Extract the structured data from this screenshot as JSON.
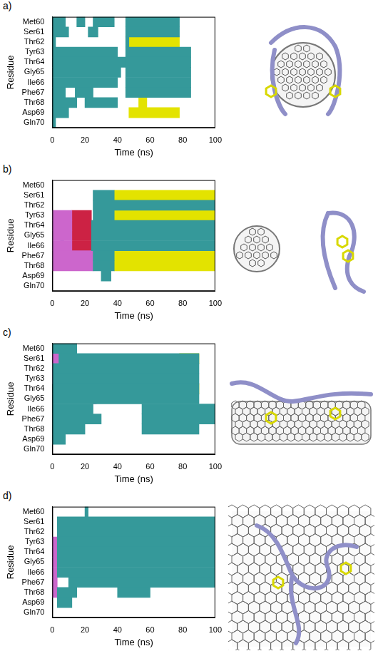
{
  "chart_data": [
    {
      "type": "timeline",
      "title": "a)",
      "x_label": "Time (ns)",
      "y_label": "Residue",
      "categories": [
        "Met60",
        "Ser61",
        "Thr62",
        "Tyr63",
        "Thr64",
        "Gly65",
        "Ile66",
        "Phe67",
        "Thr68",
        "Asp69",
        "Gln70"
      ],
      "xlim": [
        0,
        100
      ],
      "xticks": [
        0,
        20,
        40,
        60,
        80,
        100
      ],
      "grid": false,
      "series": [
        {
          "color": "#35999a",
          "intervals": [
            [
              "Met60",
              0,
              8
            ],
            [
              "Met60",
              15,
              20
            ],
            [
              "Met60",
              25,
              38
            ],
            [
              "Met60",
              45,
              78
            ],
            [
              "Ser61",
              0,
              10
            ],
            [
              "Ser61",
              22,
              28
            ],
            [
              "Ser61",
              45,
              78
            ],
            [
              "Thr62",
              0,
              2
            ],
            [
              "Thr62",
              45,
              47
            ],
            [
              "Tyr63",
              0,
              40
            ],
            [
              "Tyr63",
              45,
              85
            ],
            [
              "Thr64",
              0,
              45
            ],
            [
              "Thr64",
              45,
              85
            ],
            [
              "Gly65",
              0,
              42
            ],
            [
              "Gly65",
              45,
              85
            ],
            [
              "Ile66",
              0,
              40
            ],
            [
              "Ile66",
              45,
              85
            ],
            [
              "Phe67",
              0,
              8
            ],
            [
              "Phe67",
              14,
              25
            ],
            [
              "Phe67",
              45,
              85
            ],
            [
              "Thr68",
              0,
              15
            ],
            [
              "Thr68",
              20,
              40
            ],
            [
              "Asp69",
              0,
              10
            ],
            [
              "Gln70",
              0,
              2
            ]
          ]
        },
        {
          "color": "#e3e300",
          "intervals": [
            [
              "Thr62",
              47,
              78
            ],
            [
              "Thr68",
              53,
              58
            ],
            [
              "Asp69",
              47,
              78
            ]
          ]
        }
      ]
    },
    {
      "type": "timeline",
      "title": "b)",
      "x_label": "Time (ns)",
      "y_label": "Residue",
      "categories": [
        "Met60",
        "Ser61",
        "Thr62",
        "Tyr63",
        "Thr64",
        "Gly65",
        "Ile66",
        "Phe67",
        "Thr68",
        "Asp69",
        "Gln70"
      ],
      "xlim": [
        0,
        100
      ],
      "xticks": [
        0,
        20,
        40,
        60,
        80,
        100
      ],
      "grid": false,
      "series": [
        {
          "color": "#35999a",
          "intervals": [
            [
              "Ser61",
              25,
              38
            ],
            [
              "Thr62",
              25,
              100
            ],
            [
              "Tyr63",
              25,
              38
            ],
            [
              "Thr64",
              24,
              100
            ],
            [
              "Gly65",
              24,
              100
            ],
            [
              "Ile66",
              24,
              100
            ],
            [
              "Phe67",
              25,
              38
            ],
            [
              "Thr68",
              25,
              38
            ],
            [
              "Asp69",
              30,
              36
            ]
          ]
        },
        {
          "color": "#e3e300",
          "intervals": [
            [
              "Ser61",
              38,
              100
            ],
            [
              "Tyr63",
              38,
              100
            ],
            [
              "Phe67",
              38,
              100
            ],
            [
              "Thr68",
              38,
              100
            ]
          ]
        },
        {
          "color": "#cc66cc",
          "intervals": [
            [
              "Tyr63",
              0,
              12
            ],
            [
              "Thr64",
              0,
              12
            ],
            [
              "Gly65",
              0,
              12
            ],
            [
              "Ile66",
              0,
              12
            ],
            [
              "Phe67",
              0,
              25
            ],
            [
              "Thr68",
              0,
              25
            ]
          ]
        },
        {
          "color": "#cc2244",
          "intervals": [
            [
              "Tyr63",
              12,
              24
            ],
            [
              "Thr64",
              12,
              24
            ],
            [
              "Gly65",
              12,
              24
            ],
            [
              "Ile66",
              12,
              24
            ]
          ]
        },
        {
          "color": "#2244cc",
          "intervals": [
            [
              "Thr64",
              3,
              5
            ],
            [
              "Ile66",
              5,
              7
            ]
          ]
        }
      ]
    },
    {
      "type": "timeline",
      "title": "c)",
      "x_label": "Time (ns)",
      "y_label": "Residue",
      "categories": [
        "Met60",
        "Ser61",
        "Thr62",
        "Tyr63",
        "Thr64",
        "Gly65",
        "Ile66",
        "Phe67",
        "Thr68",
        "Asp69",
        "Gln70"
      ],
      "xlim": [
        0,
        100
      ],
      "xticks": [
        0,
        20,
        40,
        60,
        80,
        100
      ],
      "grid": false,
      "series": [
        {
          "color": "#35999a",
          "intervals": [
            [
              "Met60",
              0,
              15
            ],
            [
              "Ser61",
              4,
              90
            ],
            [
              "Thr62",
              0,
              90
            ],
            [
              "Tyr63",
              0,
              90
            ],
            [
              "Thr64",
              0,
              90
            ],
            [
              "Gly65",
              0,
              90
            ],
            [
              "Ile66",
              0,
              25
            ],
            [
              "Ile66",
              55,
              100
            ],
            [
              "Phe67",
              0,
              30
            ],
            [
              "Phe67",
              55,
              100
            ],
            [
              "Thr68",
              0,
              20
            ],
            [
              "Thr68",
              55,
              90
            ],
            [
              "Asp69",
              0,
              8
            ]
          ]
        },
        {
          "color": "#e3e300",
          "intervals": [
            [
              "Ser61",
              78,
              90
            ],
            [
              "Thr64",
              55,
              62
            ],
            [
              "Thr64",
              78,
              90
            ]
          ]
        },
        {
          "color": "#cc66cc",
          "intervals": [
            [
              "Ser61",
              0,
              4
            ],
            [
              "Thr62",
              0,
              4
            ],
            [
              "Tyr63",
              0,
              4
            ],
            [
              "Gly65",
              25,
              27
            ]
          ]
        },
        {
          "color": "#2244cc",
          "intervals": [
            [
              "Thr64",
              3,
              5
            ],
            [
              "Thr64",
              25,
              26
            ]
          ]
        }
      ]
    },
    {
      "type": "timeline",
      "title": "d)",
      "x_label": "Time (ns)",
      "y_label": "Residue",
      "categories": [
        "Met60",
        "Ser61",
        "Thr62",
        "Tyr63",
        "Thr64",
        "Gly65",
        "Ile66",
        "Phe67",
        "Thr68",
        "Asp69",
        "Gln70"
      ],
      "xlim": [
        0,
        100
      ],
      "xticks": [
        0,
        20,
        40,
        60,
        80,
        100
      ],
      "grid": false,
      "series": [
        {
          "color": "#35999a",
          "intervals": [
            [
              "Met60",
              20,
              22
            ],
            [
              "Ser61",
              3,
              100
            ],
            [
              "Thr62",
              3,
              100
            ],
            [
              "Tyr63",
              3,
              100
            ],
            [
              "Thr64",
              3,
              100
            ],
            [
              "Gly65",
              3,
              100
            ],
            [
              "Ile66",
              3,
              100
            ],
            [
              "Phe67",
              10,
              100
            ],
            [
              "Thr68",
              3,
              15
            ],
            [
              "Thr68",
              40,
              60
            ],
            [
              "Asp69",
              3,
              12
            ]
          ]
        },
        {
          "color": "#cc66cc",
          "intervals": [
            [
              "Tyr63",
              0,
              3
            ],
            [
              "Thr64",
              0,
              3
            ],
            [
              "Gly65",
              0,
              3
            ],
            [
              "Ile66",
              0,
              3
            ],
            [
              "Phe67",
              0,
              3
            ],
            [
              "Thr68",
              0,
              3
            ]
          ]
        }
      ]
    }
  ]
}
